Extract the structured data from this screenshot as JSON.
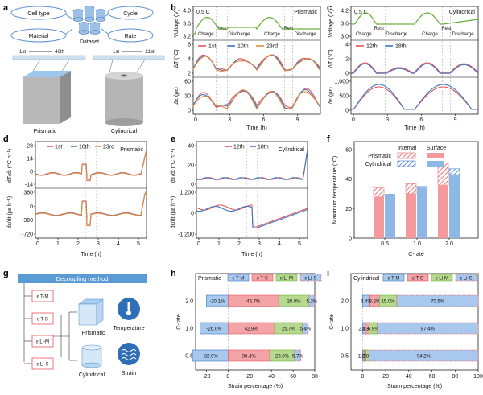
{
  "panel_labels": [
    "a",
    "b",
    "c",
    "d",
    "e",
    "f",
    "g",
    "h",
    "i"
  ],
  "a": {
    "bubbles": [
      "Cell type",
      "Cycle",
      "Material",
      "Rate"
    ],
    "center": "Dataset",
    "seq1": {
      "start": "1st",
      "end": "46th"
    },
    "seq2": {
      "start": "1st",
      "end": "21st"
    },
    "cells": [
      "Prismatic",
      "Cylindrical"
    ]
  },
  "colors": {
    "c1": "#e8555a",
    "c2": "#3b78c4",
    "c3": "#e88a3c",
    "voltage": "#6cb33e",
    "green": "#6cb33e",
    "int_pr": "#f4878c",
    "int_cy": "#6fa3dc"
  },
  "chart_data": [
    {
      "id": "b",
      "type": "line",
      "title": "",
      "cell": "Prismatic",
      "rate": "0.5 C",
      "xlabel": "Time (h)",
      "xticks": [
        "0",
        "3",
        "6",
        "9"
      ],
      "xlim": [
        0,
        11
      ],
      "annotations": [
        "Charge",
        "Rest",
        "Discharge",
        "Rest",
        "Charge",
        "Discharge"
      ],
      "legend": [
        "1st",
        "10th",
        "23rd"
      ],
      "subplots": [
        {
          "ylabel": "Voltage (V)",
          "yticks": [
            "3.2",
            "3.6",
            "4.0"
          ]
        },
        {
          "ylabel": "ΔT (°C)",
          "yticks": [
            "2",
            "4",
            "6"
          ]
        },
        {
          "ylabel": "Δε (με)",
          "yticks": [
            "0",
            "30",
            "60"
          ]
        }
      ]
    },
    {
      "id": "c",
      "type": "line",
      "title": "",
      "cell": "Cylindrical",
      "rate": "0.5 C",
      "xlabel": "Time (h)",
      "xticks": [
        "0",
        "3",
        "6",
        "9"
      ],
      "xlim": [
        0,
        11
      ],
      "annotations": [
        "Charge",
        "Rest",
        "Discharge",
        "Rest",
        "Charge",
        "Discharge"
      ],
      "legend": [
        "12th",
        "18th"
      ],
      "subplots": [
        {
          "ylabel": "Voltage (V)",
          "yticks": [
            "3.0",
            "3.6",
            "4.2"
          ]
        },
        {
          "ylabel": "ΔT (°C)",
          "yticks": [
            "0",
            "2",
            "4"
          ]
        },
        {
          "ylabel": "Δε (με)",
          "yticks": [
            "0",
            "500",
            "1,000"
          ]
        }
      ]
    },
    {
      "id": "d",
      "type": "line",
      "title": "",
      "cell": "Prismatic",
      "xlabel": "Time (h)",
      "xticks": [
        "0",
        "1",
        "2",
        "3",
        "4",
        "5"
      ],
      "xlim": [
        0,
        5
      ],
      "legend": [
        "1st",
        "10th",
        "23rd"
      ],
      "subplots": [
        {
          "ylabel": "dT/dt (°C h⁻¹)",
          "yticks": [
            "-14",
            "0",
            "14",
            "28"
          ]
        },
        {
          "ylabel": "dε/dt (με h⁻¹)",
          "yticks": [
            "-720",
            "-360",
            "0",
            "360"
          ]
        }
      ]
    },
    {
      "id": "e",
      "type": "line",
      "title": "",
      "cell": "Cylindrical",
      "xlabel": "Time (h)",
      "xticks": [
        "0",
        "1",
        "2",
        "3",
        "4",
        "5"
      ],
      "xlim": [
        0,
        5
      ],
      "legend": [
        "12th",
        "18th"
      ],
      "subplots": [
        {
          "ylabel": "dT/dt (°C h⁻¹)",
          "yticks": [
            "0",
            "20",
            "40"
          ]
        },
        {
          "ylabel": "dε/dt (με h⁻¹)",
          "yticks": [
            "-1,200",
            "0",
            "1,200"
          ]
        }
      ]
    },
    {
      "id": "f",
      "type": "bar",
      "title": "",
      "xlabel": "C-rate",
      "ylabel": "Maximum temperature (°C)",
      "categories": [
        "0.5",
        "1.0",
        "2.0"
      ],
      "ylim": [
        0,
        60
      ],
      "yticks": [
        "0",
        "20",
        "40",
        "60"
      ],
      "legend_header": [
        "Internal",
        "Surface"
      ],
      "series": [
        {
          "name": "Prismatic",
          "internal": [
            34,
            37,
            51
          ],
          "surface": [
            28,
            30,
            36
          ]
        },
        {
          "name": "Cylindrical",
          "internal": [
            30,
            35,
            47
          ],
          "surface": [
            30,
            34,
            43
          ]
        }
      ]
    },
    {
      "id": "h",
      "type": "bar",
      "title": "",
      "cell": "Prismatic",
      "xlabel": "Strain percentage (%)",
      "ylabel": "C-rate",
      "xlim": [
        -30,
        80
      ],
      "xticks": [
        "-20",
        "0",
        "20",
        "40",
        "60",
        "80"
      ],
      "categories": [
        "2.0",
        "1.0",
        "0.5"
      ],
      "legend": [
        "ε T-M",
        "ε T-S",
        "ε Li-M",
        "ε Li-S"
      ],
      "series": [
        {
          "name": "ε T-M",
          "values": [
            -20.1,
            -26.0,
            -32.9
          ]
        },
        {
          "name": "ε T-S",
          "values": [
            46.7,
            42.9,
            38.4
          ]
        },
        {
          "name": "ε Li-M",
          "values": [
            28.0,
            25.7,
            23.0
          ]
        },
        {
          "name": "ε Li-S",
          "values": [
            5.2,
            5.4,
            5.7
          ]
        }
      ],
      "labels": [
        [
          "-20.1%",
          "46.7%",
          "28.0%",
          "5.2%"
        ],
        [
          "-26.0%",
          "42.9%",
          "25.7%",
          "5.4%"
        ],
        [
          "-32.9%",
          "38.4%",
          "23.0%",
          "5.7%"
        ]
      ]
    },
    {
      "id": "i",
      "type": "bar",
      "title": "",
      "cell": "Cylindrical",
      "xlabel": "Strain percentage (%)",
      "ylabel": "C-rate",
      "xlim": [
        -10,
        100
      ],
      "xticks": [
        "0",
        "20",
        "40",
        "60",
        "80",
        "100"
      ],
      "categories": [
        "2.0",
        "1.0",
        "0.5"
      ],
      "legend": [
        "ε T-M",
        "ε T-S",
        "ε Li-M",
        "ε Li-S"
      ],
      "series": [
        {
          "name": "ε T-M",
          "values": [
            6.4,
            2.5,
            1.3
          ]
        },
        {
          "name": "ε T-S",
          "values": [
            8.2,
            3.3,
            1.7
          ]
        },
        {
          "name": "ε Li-M",
          "values": [
            15.0,
            6.9,
            2.8
          ]
        },
        {
          "name": "ε Li-S",
          "values": [
            70.5,
            87.4,
            94.2
          ]
        }
      ],
      "labels": [
        [
          "6.4%",
          "8.2%",
          "15.0%",
          "70.5%"
        ],
        [
          "2.5%",
          "3.3%",
          "6.9%",
          "87.4%"
        ],
        [
          "1.3%",
          "1.7%",
          "2.8%",
          "94.2%"
        ]
      ]
    }
  ],
  "g": {
    "title": "Decoupling method",
    "items": [
      "ε T-M",
      "ε T-S",
      "ε Li-M",
      "ε Li-S"
    ],
    "cells": [
      "Prismatic",
      "Cylindrical"
    ],
    "outputs": [
      "Temperature",
      "Strain"
    ]
  }
}
